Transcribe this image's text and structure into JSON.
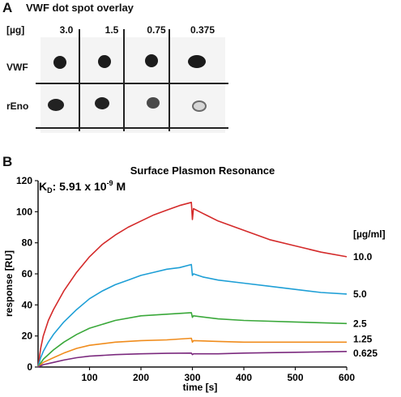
{
  "panel_a": {
    "letter": "A",
    "title": "VWF dot spot overlay",
    "unit_label": "[µg]",
    "concentrations": [
      "3.0",
      "1.5",
      "0.75",
      "0.375"
    ],
    "rows": [
      {
        "label": "VWF",
        "spot_intensity": [
          "dark",
          "dark",
          "dark",
          "dark"
        ]
      },
      {
        "label": "rEno",
        "spot_intensity": [
          "dark",
          "dark",
          "medium",
          "faint"
        ]
      }
    ]
  },
  "panel_b": {
    "letter": "B",
    "title": "Surface Plasmon Resonance",
    "kd_label": "K",
    "kd_sub": "D",
    "kd_value": ": 5.91 x 10",
    "kd_exp": "-9",
    "kd_unit": " M",
    "legend_title": "[µg/ml]"
  },
  "chart_data": {
    "type": "line",
    "title": "Surface Plasmon Resonance",
    "xlabel": "time [s]",
    "ylabel": "response [RU]",
    "xlim": [
      0,
      600
    ],
    "ylim": [
      0,
      120
    ],
    "xticks": [
      100,
      200,
      300,
      400,
      500,
      600
    ],
    "yticks": [
      0,
      20,
      40,
      60,
      80,
      100,
      120
    ],
    "grid": false,
    "legend_placement": "right",
    "series": [
      {
        "name": "10.0",
        "color": "#d42a2a",
        "x": [
          0,
          5,
          10,
          20,
          30,
          50,
          75,
          100,
          125,
          150,
          175,
          200,
          225,
          250,
          275,
          298,
          300,
          302,
          320,
          350,
          400,
          450,
          500,
          550,
          600
        ],
        "y": [
          0,
          12,
          20,
          30,
          37,
          49,
          61,
          71,
          79,
          85,
          90,
          94,
          98,
          101,
          104,
          106,
          95,
          102,
          99,
          94,
          88,
          82,
          78,
          74,
          71
        ]
      },
      {
        "name": "5.0",
        "color": "#1e9fd6",
        "x": [
          0,
          5,
          10,
          20,
          30,
          50,
          75,
          100,
          125,
          150,
          175,
          200,
          225,
          250,
          275,
          298,
          300,
          302,
          320,
          350,
          400,
          450,
          500,
          550,
          600
        ],
        "y": [
          0,
          6,
          10,
          16,
          21,
          29,
          37,
          44,
          49,
          53,
          56,
          59,
          61,
          63,
          64,
          66,
          59,
          60,
          58,
          56,
          54,
          52,
          50,
          48,
          47
        ]
      },
      {
        "name": "2.5",
        "color": "#3aa83a",
        "x": [
          0,
          10,
          30,
          50,
          75,
          100,
          150,
          200,
          250,
          298,
          300,
          302,
          350,
          400,
          500,
          600
        ],
        "y": [
          0,
          5,
          11,
          16,
          21,
          25,
          30,
          33,
          34,
          35,
          32,
          33,
          31,
          30,
          29,
          28
        ]
      },
      {
        "name": "1.25",
        "color": "#f08c1c",
        "x": [
          0,
          10,
          30,
          50,
          75,
          100,
          150,
          200,
          250,
          298,
          300,
          302,
          350,
          400,
          500,
          600
        ],
        "y": [
          0,
          3,
          6,
          9,
          12,
          14,
          16,
          17,
          17.5,
          18.5,
          16,
          17,
          16.5,
          16,
          16,
          16
        ]
      },
      {
        "name": "0.625",
        "color": "#7b2a7e",
        "x": [
          0,
          10,
          30,
          50,
          75,
          100,
          150,
          200,
          250,
          298,
          300,
          302,
          350,
          400,
          500,
          600
        ],
        "y": [
          0,
          1.5,
          3,
          4.5,
          6,
          7,
          8,
          8.5,
          8.8,
          9,
          8,
          8.5,
          8.5,
          9,
          9.5,
          10
        ]
      }
    ]
  }
}
